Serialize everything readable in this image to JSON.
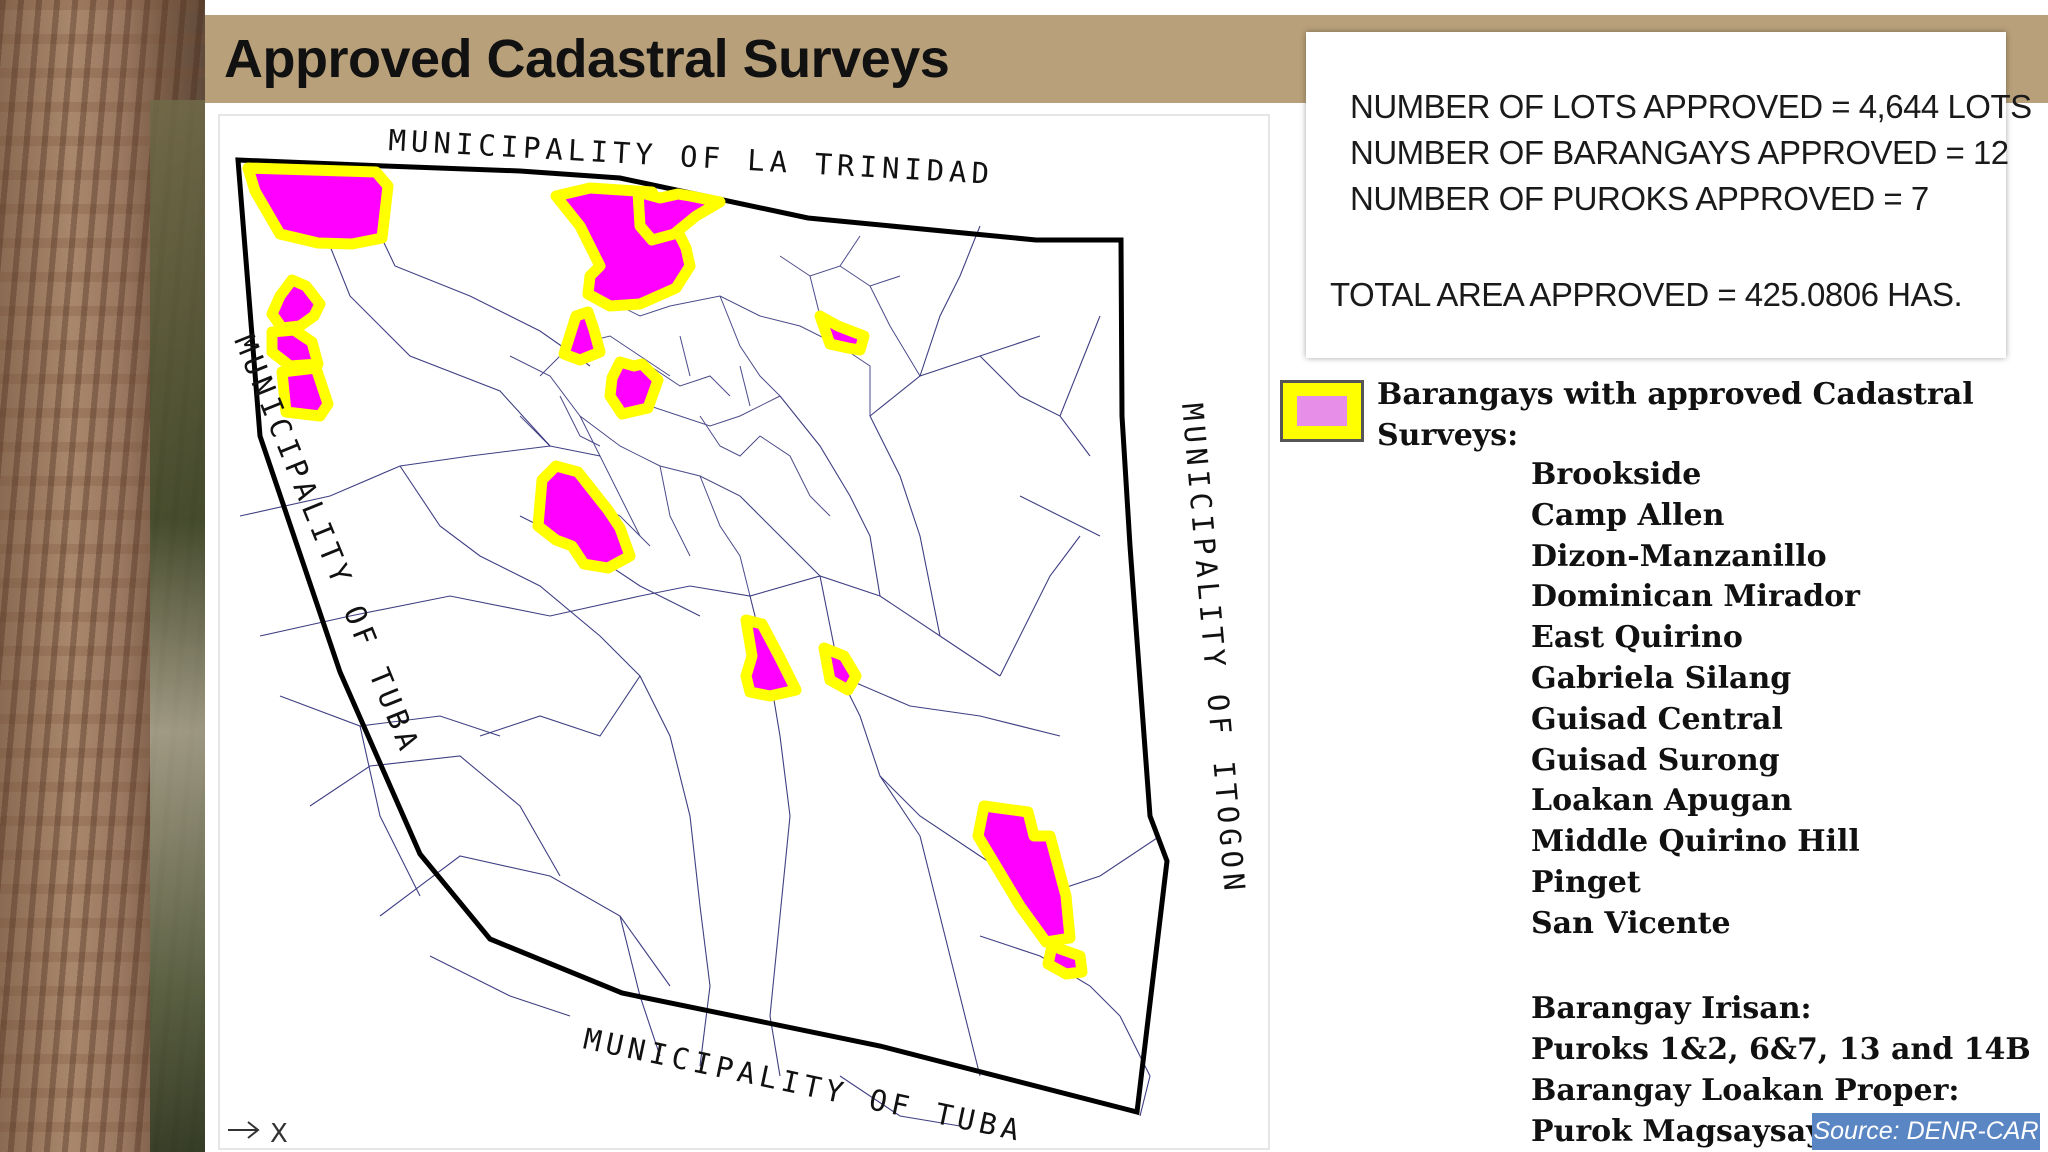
{
  "slide": {
    "title": "Approved Cadastral Surveys"
  },
  "map": {
    "labels": {
      "north": "MUNICIPALITY OF LA TRINIDAD",
      "west": "MUNICIPALITY OF TUBA",
      "east": "MUNICIPALITY OF ITOGON",
      "south": "MUNICIPALITY OF TUBA"
    },
    "corner_marker": "X",
    "approved_fill_color": "#ff00ff",
    "approved_outline_color": "#ffff00",
    "boundary_line_color": "#1e1e6e"
  },
  "stats": {
    "lots": "NUMBER OF LOTS APPROVED = 4,644 LOTS",
    "barangays": "NUMBER OF BARANGAYS APPROVED = 12",
    "puroks": "NUMBER OF PUROKS APPROVED = 7",
    "area": "TOTAL AREA APPROVED = 425.0806 HAS."
  },
  "legend": {
    "title": "Barangays with approved Cadastral Surveys:",
    "swatch_outer_color": "#ffff00",
    "swatch_inner_color": "#e78ee8",
    "barangays": [
      "Brookside",
      "Camp Allen",
      "Dizon-Manzanillo",
      "Dominican Mirador",
      "East Quirino",
      "Gabriela Silang",
      "Guisad Central",
      "Guisad Surong",
      "Loakan Apugan",
      "Middle Quirino Hill",
      "Pinget",
      "San Vicente"
    ],
    "irisan_heading": "Barangay Irisan:",
    "irisan_puroks": "Puroks 1&2, 6&7, 13 and 14B",
    "loakan_heading": "Barangay Loakan Proper:",
    "loakan_purok": "Purok Magsaysay"
  },
  "source": "Source: DENR-CAR"
}
